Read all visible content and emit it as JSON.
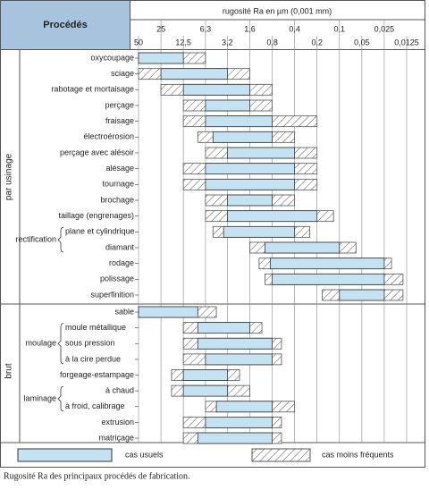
{
  "chart_data": {
    "type": "range",
    "header": "Procédés",
    "xlabel": "rugosité Ra en µm (0,001 mm)",
    "caption": "Rugosité Ra des principaux procédés de fabrication.",
    "log_x": true,
    "reversed_x": true,
    "grid": true,
    "xlim": [
      50,
      0.0125
    ],
    "xticks": [
      50,
      25,
      {
        "value": 12.5,
        "label": "12,5"
      },
      {
        "value": 6.3,
        "label": "6,3"
      },
      {
        "value": 3.2,
        "label": "3,2"
      },
      {
        "value": 1.6,
        "label": "1,6"
      },
      {
        "value": 0.8,
        "label": "0,8"
      },
      {
        "value": 0.4,
        "label": "0,4"
      },
      {
        "value": 0.2,
        "label": "0,2"
      },
      {
        "value": 0.1,
        "label": "0,1"
      },
      {
        "value": 0.05,
        "label": "0,05"
      },
      {
        "value": 0.025,
        "label": "0,025"
      },
      {
        "value": 0.0125,
        "label": "0,0125"
      }
    ],
    "legend": {
      "usual": "cas usuels",
      "rare": "cas moins fréquents"
    },
    "usual_color": "#c5e2f3",
    "rare_color": "#555555",
    "groups": [
      {
        "name": "par usinage",
        "items": [
          {
            "label": "oxycoupage",
            "usual": [
              50,
              12.5
            ],
            "rare": [
              50,
              6.3
            ]
          },
          {
            "label": "sciage",
            "usual": [
              25,
              3.2
            ],
            "rare": [
              50,
              1.6
            ]
          },
          {
            "label": "rabotage et mortaisage",
            "usual": [
              12.5,
              1.6
            ],
            "rare": [
              25,
              0.8
            ]
          },
          {
            "label": "perçage",
            "usual": [
              6.3,
              1.6
            ],
            "rare": [
              12.5,
              0.8
            ]
          },
          {
            "label": "fraisage",
            "usual": [
              6.3,
              0.8
            ],
            "rare": [
              12.5,
              0.2
            ]
          },
          {
            "label": "électroérosion",
            "usual": [
              5,
              0.8
            ],
            "rare": [
              8,
              0.4
            ]
          },
          {
            "label": "perçage avec alésoir",
            "usual": [
              3.2,
              0.4
            ],
            "rare": [
              6.3,
              0.2
            ]
          },
          {
            "label": "alésage",
            "usual": [
              6.3,
              0.4
            ],
            "rare": [
              12.5,
              0.2
            ]
          },
          {
            "label": "tournage",
            "usual": [
              6.3,
              0.4
            ],
            "rare": [
              12.5,
              0.2
            ]
          },
          {
            "label": "brochage",
            "usual": [
              3.2,
              0.8
            ],
            "rare": [
              6.3,
              0.4
            ]
          },
          {
            "label": "taillage (engrenages)",
            "usual": [
              3.2,
              0.2
            ],
            "rare": [
              6.3,
              0.12
            ]
          },
          {
            "name": "rectification",
            "items": [
              {
                "label": "plane et cylindrique",
                "usual": [
                  3.6,
                  0.4
                ],
                "rare": [
                  5,
                  0.25
                ]
              },
              {
                "label": "diamant",
                "usual": [
                  1,
                  0.1
                ],
                "rare": [
                  1.6,
                  0.06
                ]
              }
            ]
          },
          {
            "label": "rodage",
            "usual": [
              0.85,
              0.025
            ],
            "rare": [
              1.2,
              0.02
            ]
          },
          {
            "label": "polissage",
            "usual": [
              0.8,
              0.025
            ],
            "rare": [
              1,
              0.014
            ]
          },
          {
            "label": "superfinition",
            "usual": [
              0.1,
              0.025
            ],
            "rare": [
              0.17,
              0.014
            ]
          }
        ]
      },
      {
        "name": "brut",
        "items": [
          {
            "label": "sable",
            "usual": [
              50,
              8
            ],
            "rare": [
              50,
              4.5
            ]
          },
          {
            "name": "moulage",
            "items": [
              {
                "label": "moule métallique",
                "usual": [
                  8,
                  1.6
                ],
                "rare": [
                  12.5,
                  1.1
                ]
              },
              {
                "label": "sous pression",
                "usual": [
                  8,
                  0.8
                ],
                "rare": [
                  12.5,
                  0.6
                ]
              },
              {
                "label": "à la cire perdue",
                "usual": [
                  6.3,
                  0.8
                ],
                "rare": [
                  12.5,
                  0.6
                ]
              }
            ]
          },
          {
            "label": "forgeage-estampage",
            "usual": [
              12.5,
              3.2
            ],
            "rare": [
              18,
              2.2
            ]
          },
          {
            "name": "laminage",
            "items": [
              {
                "label": "à chaud",
                "usual": [
                  12.5,
                  3.2
                ],
                "rare": [
                  18,
                  1.6
                ]
              },
              {
                "label": "à froid, calibrage",
                "usual": [
                  4.5,
                  0.8
                ],
                "rare": [
                  6.3,
                  0.4
                ]
              }
            ]
          },
          {
            "label": "extrusion",
            "usual": [
              6.3,
              0.8
            ],
            "rare": [
              12.5,
              0.6
            ]
          },
          {
            "label": "matriçage",
            "usual": [
              8,
              0.8
            ],
            "rare": [
              12.5,
              0.6
            ]
          }
        ]
      }
    ]
  }
}
